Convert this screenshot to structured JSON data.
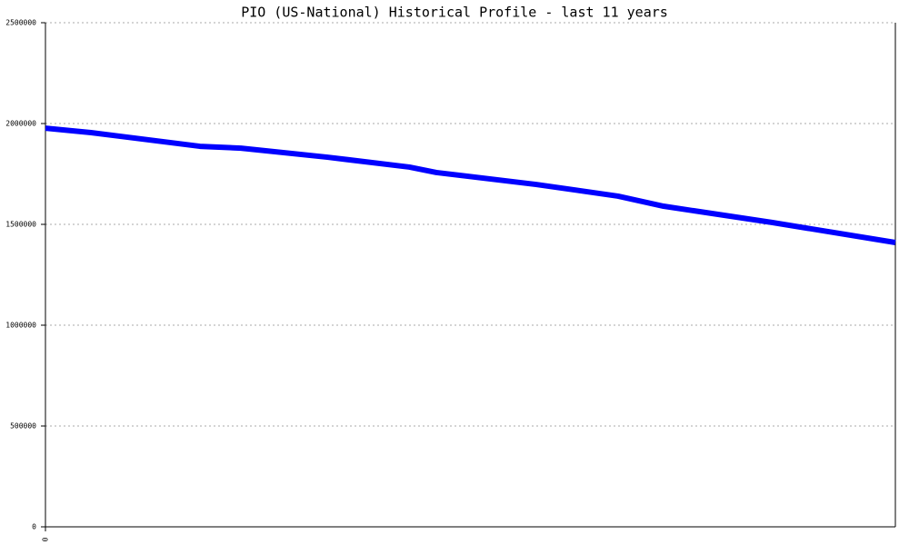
{
  "chart_data": {
    "type": "line",
    "title": "PIO (US-National) Historical Profile - last 11 years",
    "series": [
      {
        "color": "#0000ff",
        "x": [
          0,
          0.59,
          2,
          2.53,
          3.65,
          4.71,
          5.06,
          6.35,
          7.41,
          8,
          9.41,
          11
        ],
        "values": [
          1977000,
          1955000,
          1887000,
          1878000,
          1833000,
          1784000,
          1757000,
          1698000,
          1640000,
          1590000,
          1509000,
          1410000
        ]
      }
    ],
    "xlim": [
      0,
      11
    ],
    "xticks": [
      0
    ],
    "ylim": [
      0,
      2500000
    ],
    "yticks": [
      0,
      500000,
      1000000,
      1500000,
      2000000,
      2500000
    ],
    "grid": true
  }
}
